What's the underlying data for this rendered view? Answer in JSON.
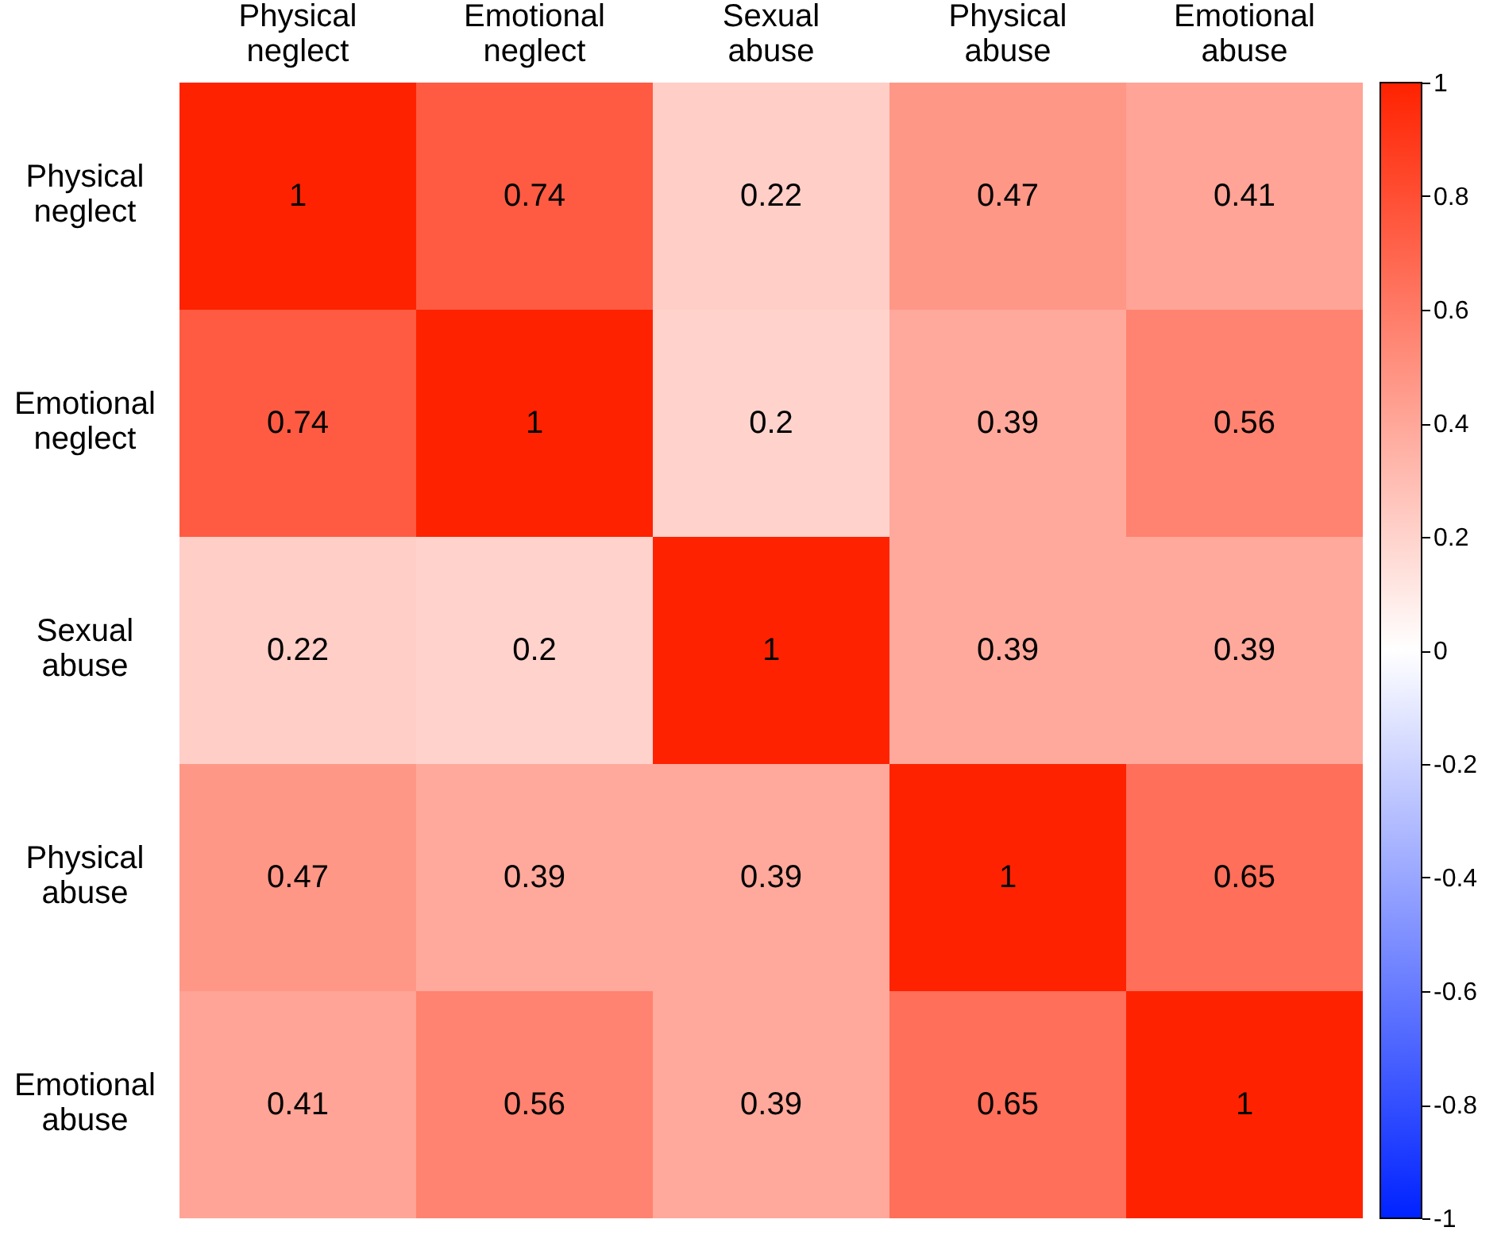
{
  "chart_data": {
    "type": "heatmap",
    "categories": [
      "Physical neglect",
      "Emotional neglect",
      "Sexual abuse",
      "Physical abuse",
      "Emotional abuse"
    ],
    "y_categories": [
      "Physical neglect",
      "Emotional neglect",
      "Sexual abuse",
      "Physical abuse",
      "Emotional abuse"
    ],
    "cells": [
      [
        1,
        0.74,
        0.22,
        0.47,
        0.41
      ],
      [
        0.74,
        1,
        0.2,
        0.39,
        0.56
      ],
      [
        0.22,
        0.2,
        1,
        0.39,
        0.39
      ],
      [
        0.47,
        0.39,
        0.39,
        1,
        0.65
      ],
      [
        0.41,
        0.56,
        0.39,
        0.65,
        1
      ]
    ],
    "clim": [
      -1,
      1
    ],
    "cticks": [
      -1,
      -0.8,
      -0.6,
      -0.4,
      -0.2,
      0,
      0.2,
      0.4,
      0.6,
      0.8,
      1
    ],
    "data_labels": true
  }
}
